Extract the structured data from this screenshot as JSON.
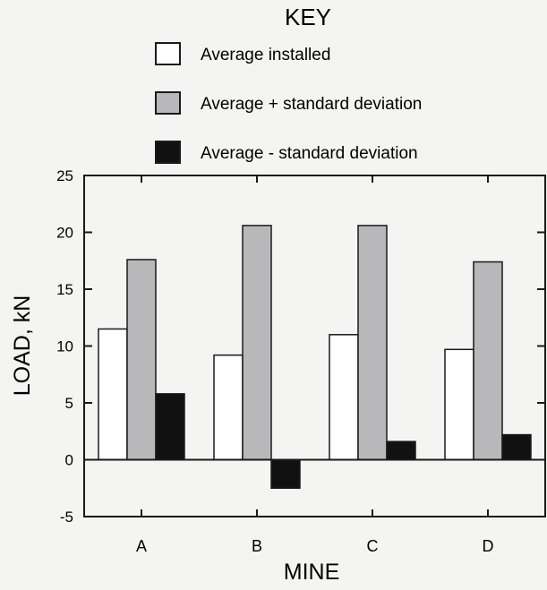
{
  "chart_data": {
    "type": "bar",
    "legend_title": "KEY",
    "legend_position": "top",
    "xlabel": "MINE",
    "ylabel": "LOAD, kN",
    "ylim": [
      -5,
      25
    ],
    "yticks": [
      -5,
      0,
      5,
      10,
      15,
      20,
      25
    ],
    "grid": false,
    "categories": [
      "A",
      "B",
      "C",
      "D"
    ],
    "series": [
      {
        "name": "Average installed",
        "color": "#ffffff",
        "values": [
          11.5,
          9.2,
          11.0,
          9.7
        ]
      },
      {
        "name": "Average + standard deviation",
        "color": "#b8b8bb",
        "values": [
          17.6,
          20.6,
          20.6,
          17.4
        ]
      },
      {
        "name": "Average - standard deviation",
        "color": "#111111",
        "values": [
          5.8,
          -2.5,
          1.6,
          2.2
        ]
      }
    ]
  }
}
